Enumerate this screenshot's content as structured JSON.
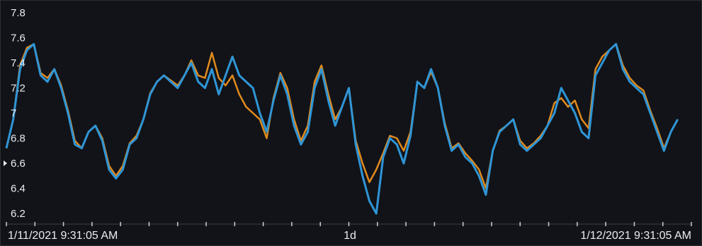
{
  "chart_data": {
    "type": "line",
    "title": "",
    "xlabel": "",
    "ylabel": "",
    "ylim": [
      6.15,
      7.85
    ],
    "y_ticks": [
      "7.8",
      "7.6",
      "7.4",
      "7.2",
      "7",
      "6.8",
      "6.6",
      "6.4",
      "6.2"
    ],
    "x_labels": {
      "start": "1/11/2021 9:31:05 AM",
      "middle": "1d",
      "end": "1/12/2021 9:31:05 AM"
    },
    "grid": false,
    "legend": "none",
    "colors": {
      "series_a": "#2f95d6",
      "series_b": "#e08a1e",
      "background": "#111318",
      "text": "#e8ecef"
    },
    "x": [
      0,
      0.01,
      0.02,
      0.03,
      0.04,
      0.05,
      0.06,
      0.07,
      0.08,
      0.09,
      0.1,
      0.11,
      0.12,
      0.13,
      0.14,
      0.15,
      0.16,
      0.17,
      0.18,
      0.19,
      0.2,
      0.21,
      0.22,
      0.23,
      0.24,
      0.25,
      0.26,
      0.27,
      0.28,
      0.29,
      0.3,
      0.31,
      0.32,
      0.33,
      0.34,
      0.35,
      0.36,
      0.37,
      0.38,
      0.39,
      0.4,
      0.41,
      0.42,
      0.43,
      0.44,
      0.45,
      0.46,
      0.47,
      0.48,
      0.49,
      0.5,
      0.51,
      0.52,
      0.53,
      0.54,
      0.55,
      0.56,
      0.57,
      0.58,
      0.59,
      0.6,
      0.61,
      0.62,
      0.63,
      0.64,
      0.65,
      0.66,
      0.67,
      0.68,
      0.69,
      0.7,
      0.71,
      0.72,
      0.73,
      0.74,
      0.75,
      0.76,
      0.77,
      0.78,
      0.79,
      0.8,
      0.81,
      0.82,
      0.83,
      0.84,
      0.85,
      0.86,
      0.87,
      0.88,
      0.89,
      0.9,
      0.91,
      0.92,
      0.93,
      0.94,
      0.95,
      0.96,
      0.97,
      0.98
    ],
    "series": [
      {
        "values": [
          6.72,
          6.95,
          7.35,
          7.5,
          7.55,
          7.3,
          7.25,
          7.35,
          7.2,
          7.0,
          6.75,
          6.72,
          6.85,
          6.9,
          6.78,
          6.55,
          6.48,
          6.55,
          6.75,
          6.8,
          6.95,
          7.15,
          7.25,
          7.3,
          7.25,
          7.2,
          7.3,
          7.4,
          7.25,
          7.2,
          7.35,
          7.15,
          7.3,
          7.45,
          7.3,
          7.25,
          7.2,
          7.0,
          6.85,
          7.1,
          7.3,
          7.15,
          6.9,
          6.75,
          6.85,
          7.2,
          7.35,
          7.1,
          6.9,
          7.05,
          7.2,
          6.75,
          6.5,
          6.3,
          6.2,
          6.65,
          6.8,
          6.75,
          6.6,
          6.82,
          7.25,
          7.2,
          7.35,
          7.2,
          6.9,
          6.7,
          6.75,
          6.65,
          6.6,
          6.5,
          6.35,
          6.7,
          6.85,
          6.9,
          6.95,
          6.75,
          6.7,
          6.75,
          6.8,
          6.9,
          7.0,
          7.2,
          7.1,
          7.0,
          6.85,
          6.8,
          7.3,
          7.4,
          7.5,
          7.55,
          7.35,
          7.25,
          7.2,
          7.15,
          7.0,
          6.85,
          6.7,
          6.85,
          6.95
        ]
      },
      {
        "values": [
          6.72,
          6.95,
          7.38,
          7.52,
          7.55,
          7.32,
          7.28,
          7.35,
          7.22,
          7.02,
          6.78,
          6.72,
          6.85,
          6.9,
          6.8,
          6.58,
          6.5,
          6.58,
          6.76,
          6.82,
          6.95,
          7.16,
          7.25,
          7.3,
          7.26,
          7.22,
          7.3,
          7.42,
          7.3,
          7.28,
          7.48,
          7.28,
          7.22,
          7.3,
          7.15,
          7.05,
          7.0,
          6.95,
          6.8,
          7.12,
          7.32,
          7.2,
          6.95,
          6.78,
          6.9,
          7.25,
          7.38,
          7.15,
          6.95,
          7.05,
          7.2,
          6.78,
          6.6,
          6.45,
          6.55,
          6.68,
          6.82,
          6.8,
          6.7,
          6.85,
          7.25,
          7.2,
          7.33,
          7.2,
          6.92,
          6.72,
          6.76,
          6.68,
          6.62,
          6.55,
          6.4,
          6.7,
          6.86,
          6.9,
          6.95,
          6.78,
          6.72,
          6.76,
          6.82,
          6.9,
          7.08,
          7.12,
          7.05,
          7.1,
          6.95,
          6.88,
          7.35,
          7.45,
          7.5,
          7.55,
          7.38,
          7.28,
          7.22,
          7.18,
          7.02,
          6.88,
          6.72,
          6.85,
          6.95
        ]
      }
    ]
  }
}
